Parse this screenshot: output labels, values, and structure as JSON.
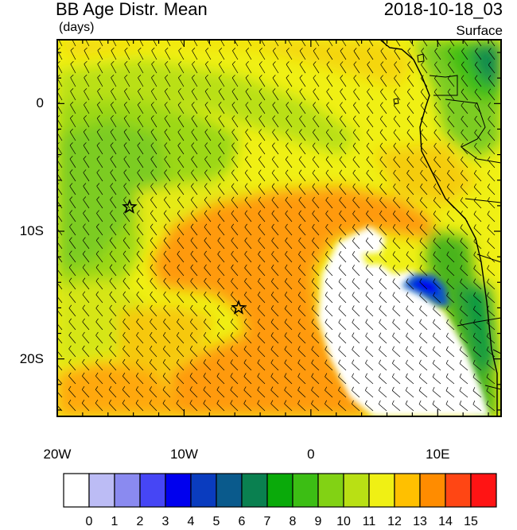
{
  "header": {
    "title": "BB Age Distr. Mean",
    "units": "(days)",
    "datetime": "2018-10-18_03",
    "level": "Surface"
  },
  "axes": {
    "lat_ticks": [
      {
        "value": 0,
        "label": "0"
      },
      {
        "value": -10,
        "label": "10S"
      },
      {
        "value": -20,
        "label": "20S"
      }
    ],
    "lon_ticks": [
      {
        "value": -20,
        "label": "20W"
      },
      {
        "value": -10,
        "label": "10W"
      },
      {
        "value": 0,
        "label": "0"
      },
      {
        "value": 10,
        "label": "10E"
      }
    ],
    "lon_range": [
      -20,
      15
    ],
    "lat_range": [
      -24.5,
      5
    ]
  },
  "colorbar": {
    "labels": [
      "0",
      "1",
      "2",
      "3",
      "4",
      "5",
      "6",
      "7",
      "8",
      "9",
      "10",
      "11",
      "12",
      "13",
      "14",
      "15"
    ],
    "colors": [
      "#ffffff",
      "#bcbcf5",
      "#8a8af0",
      "#4646f5",
      "#0000ee",
      "#0a3cbf",
      "#0a5a8c",
      "#0a8050",
      "#0aaa0a",
      "#3cbe14",
      "#82d214",
      "#b9e014",
      "#f0f014",
      "#ffc000",
      "#ff8c00",
      "#ff4614",
      "#ff1414"
    ]
  },
  "markers": [
    {
      "name": "star-marker-1",
      "lon": -14.3,
      "lat": -8.1
    },
    {
      "name": "star-marker-2",
      "lon": -5.7,
      "lat": -16.0
    }
  ],
  "legend_colors": {
    "frame": "#000000",
    "coast": "#000000",
    "wind_barb": "#000000"
  }
}
